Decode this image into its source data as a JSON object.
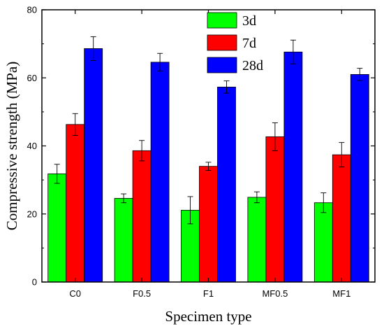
{
  "chart_data": {
    "type": "bar",
    "xlabel": "Specimen type",
    "ylabel": "Compressive strength (MPa)",
    "categories": [
      "C0",
      "F0.5",
      "F1",
      "MF0.5",
      "MF1"
    ],
    "ylim": [
      0,
      80
    ],
    "yticks": [
      0,
      20,
      40,
      60,
      80
    ],
    "legend_position": "top-center",
    "grid": false,
    "series": [
      {
        "name": "3d",
        "color": "#00ff00",
        "values": [
          31.8,
          24.6,
          21.1,
          24.9,
          23.3
        ],
        "errors": [
          2.8,
          1.3,
          4.0,
          1.6,
          2.9
        ]
      },
      {
        "name": "7d",
        "color": "#ff0000",
        "values": [
          46.3,
          38.6,
          34.0,
          42.7,
          37.4
        ],
        "errors": [
          3.2,
          3.0,
          1.2,
          4.1,
          3.6
        ]
      },
      {
        "name": "28d",
        "color": "#0000ff",
        "values": [
          68.6,
          64.6,
          57.3,
          67.6,
          61.0
        ],
        "errors": [
          3.5,
          2.6,
          1.8,
          3.5,
          1.8
        ]
      }
    ]
  }
}
